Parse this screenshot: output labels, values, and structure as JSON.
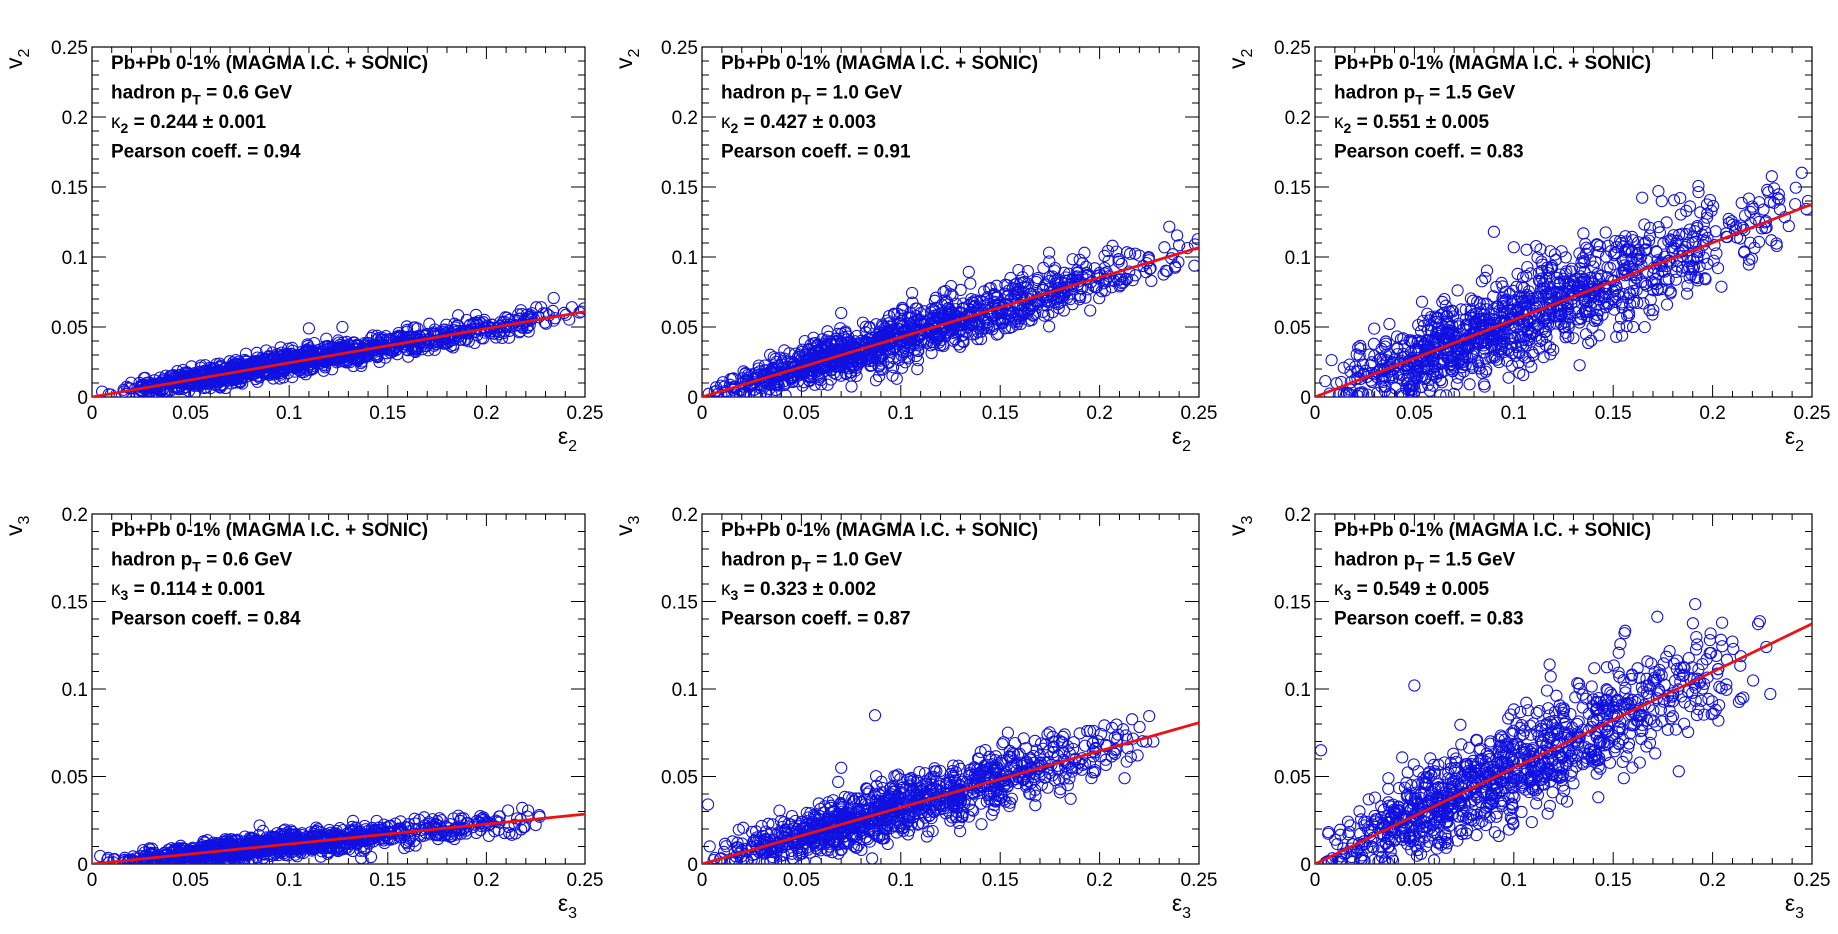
{
  "chart_data": [
    {
      "type": "scatter",
      "ylabel_base": "v",
      "ylabel_sub": "2",
      "xlabel_base": "ε",
      "xlabel_sub": "2",
      "xlim": [
        0,
        0.25
      ],
      "ylim": [
        0,
        0.25
      ],
      "xticks": [
        "0",
        "0.05",
        "0.1",
        "0.15",
        "0.2",
        "0.25"
      ],
      "yticks": [
        "0",
        "0.05",
        "0.1",
        "0.15",
        "0.2",
        "0.25"
      ],
      "legend": {
        "title": "Pb+Pb 0-1% (MAGMA I.C. + SONIC)",
        "pt_prefix": "hadron p",
        "pt_sub": "T",
        "pt_value": " = 0.6 GeV",
        "kappa_sym": "κ",
        "kappa_sub": "2",
        "kappa_value": " = 0.244",
        "kappa_err": "± 0.001",
        "pearson": "Pearson coeff. = 0.94"
      },
      "fit": {
        "slope": 0.244,
        "x_range": [
          0,
          0.25
        ]
      },
      "scatter_model": {
        "n_points": 1200,
        "x_min": 0.003,
        "x_mode": 0.07,
        "x_max": 0.25,
        "noise_sd": 0.0045,
        "seed": 11
      },
      "outliers": [
        [
          0.248,
          0.061
        ],
        [
          0.222,
          0.057
        ],
        [
          0.127,
          0.05
        ],
        [
          0.11,
          0.049
        ],
        [
          0.19,
          0.055
        ]
      ],
      "marker_color": "#1010e0",
      "fit_color": "#ee1111"
    },
    {
      "type": "scatter",
      "ylabel_base": "v",
      "ylabel_sub": "2",
      "xlabel_base": "ε",
      "xlabel_sub": "2",
      "xlim": [
        0,
        0.25
      ],
      "ylim": [
        0,
        0.25
      ],
      "xticks": [
        "0",
        "0.05",
        "0.1",
        "0.15",
        "0.2",
        "0.25"
      ],
      "yticks": [
        "0",
        "0.05",
        "0.1",
        "0.15",
        "0.2",
        "0.25"
      ],
      "legend": {
        "title": "Pb+Pb 0-1% (MAGMA I.C. + SONIC)",
        "pt_prefix": "hadron p",
        "pt_sub": "T",
        "pt_value": " = 1.0 GeV",
        "kappa_sym": "κ",
        "kappa_sub": "2",
        "kappa_value": " = 0.427",
        "kappa_err": "± 0.003",
        "pearson": "Pearson coeff. = 0.91"
      },
      "fit": {
        "slope": 0.427,
        "x_range": [
          0,
          0.25
        ]
      },
      "scatter_model": {
        "n_points": 1200,
        "x_min": 0.003,
        "x_mode": 0.07,
        "x_max": 0.25,
        "noise_sd": 0.009,
        "seed": 23
      },
      "outliers": [
        [
          0.248,
          0.109
        ],
        [
          0.22,
          0.101
        ],
        [
          0.098,
          0.013
        ],
        [
          0.07,
          0.06
        ],
        [
          0.19,
          0.098
        ]
      ],
      "marker_color": "#1010e0",
      "fit_color": "#ee1111"
    },
    {
      "type": "scatter",
      "ylabel_base": "v",
      "ylabel_sub": "2",
      "xlabel_base": "ε",
      "xlabel_sub": "2",
      "xlim": [
        0,
        0.25
      ],
      "ylim": [
        0,
        0.25
      ],
      "xticks": [
        "0",
        "0.05",
        "0.1",
        "0.15",
        "0.2",
        "0.25"
      ],
      "yticks": [
        "0",
        "0.05",
        "0.1",
        "0.15",
        "0.2",
        "0.25"
      ],
      "legend": {
        "title": "Pb+Pb 0-1% (MAGMA I.C. + SONIC)",
        "pt_prefix": "hadron p",
        "pt_sub": "T",
        "pt_value": " = 1.5 GeV",
        "kappa_sym": "κ",
        "kappa_sub": "2",
        "kappa_value": " = 0.551",
        "kappa_err": "± 0.005",
        "pearson": "Pearson coeff. = 0.83"
      },
      "fit": {
        "slope": 0.551,
        "x_range": [
          0,
          0.25
        ]
      },
      "scatter_model": {
        "n_points": 1200,
        "x_min": 0.003,
        "x_mode": 0.07,
        "x_max": 0.25,
        "noise_sd": 0.017,
        "seed": 37
      },
      "outliers": [
        [
          0.248,
          0.14
        ],
        [
          0.22,
          0.136
        ],
        [
          0.1,
          0.107
        ],
        [
          0.09,
          0.118
        ],
        [
          0.16,
          0.05
        ]
      ],
      "marker_color": "#1010e0",
      "fit_color": "#ee1111"
    },
    {
      "type": "scatter",
      "ylabel_base": "v",
      "ylabel_sub": "3",
      "xlabel_base": "ε",
      "xlabel_sub": "3",
      "xlim": [
        0,
        0.25
      ],
      "ylim": [
        0,
        0.2
      ],
      "xticks": [
        "0",
        "0.05",
        "0.1",
        "0.15",
        "0.2",
        "0.25"
      ],
      "yticks": [
        "0",
        "0.05",
        "0.1",
        "0.15",
        "0.2"
      ],
      "legend": {
        "title": "Pb+Pb 0-1% (MAGMA I.C. + SONIC)",
        "pt_prefix": "hadron p",
        "pt_sub": "T",
        "pt_value": " = 0.6 GeV",
        "kappa_sym": "κ",
        "kappa_sub": "3",
        "kappa_value": " = 0.114",
        "kappa_err": "± 0.001",
        "pearson": "Pearson coeff. = 0.84"
      },
      "fit": {
        "slope": 0.114,
        "x_range": [
          0,
          0.25
        ]
      },
      "scatter_model": {
        "n_points": 1100,
        "x_min": 0.003,
        "x_mode": 0.07,
        "x_max": 0.23,
        "noise_sd": 0.0035,
        "seed": 53
      },
      "outliers": [
        [
          0.227,
          0.027
        ],
        [
          0.198,
          0.025
        ],
        [
          0.085,
          0.022
        ]
      ],
      "marker_color": "#1010e0",
      "fit_color": "#ee1111"
    },
    {
      "type": "scatter",
      "ylabel_base": "v",
      "ylabel_sub": "3",
      "xlabel_base": "ε",
      "xlabel_sub": "3",
      "xlim": [
        0,
        0.25
      ],
      "ylim": [
        0,
        0.2
      ],
      "xticks": [
        "0",
        "0.05",
        "0.1",
        "0.15",
        "0.2",
        "0.25"
      ],
      "yticks": [
        "0",
        "0.05",
        "0.1",
        "0.15",
        "0.2"
      ],
      "legend": {
        "title": "Pb+Pb 0-1% (MAGMA I.C. + SONIC)",
        "pt_prefix": "hadron p",
        "pt_sub": "T",
        "pt_value": " = 1.0 GeV",
        "kappa_sym": "κ",
        "kappa_sub": "3",
        "kappa_value": " = 0.323",
        "kappa_err": "± 0.002",
        "pearson": "Pearson coeff. = 0.87"
      },
      "fit": {
        "slope": 0.323,
        "x_range": [
          0,
          0.25
        ]
      },
      "scatter_model": {
        "n_points": 1100,
        "x_min": 0.003,
        "x_mode": 0.07,
        "x_max": 0.23,
        "noise_sd": 0.0085,
        "seed": 71
      },
      "outliers": [
        [
          0.087,
          0.085
        ],
        [
          0.227,
          0.07
        ],
        [
          0.197,
          0.076
        ],
        [
          0.003,
          0.034
        ],
        [
          0.07,
          0.055
        ]
      ],
      "marker_color": "#1010e0",
      "fit_color": "#ee1111"
    },
    {
      "type": "scatter",
      "ylabel_base": "v",
      "ylabel_sub": "3",
      "xlabel_base": "ε",
      "xlabel_sub": "3",
      "xlim": [
        0,
        0.25
      ],
      "ylim": [
        0,
        0.2
      ],
      "xticks": [
        "0",
        "0.05",
        "0.1",
        "0.15",
        "0.2",
        "0.25"
      ],
      "yticks": [
        "0",
        "0.05",
        "0.1",
        "0.15",
        "0.2"
      ],
      "legend": {
        "title": "Pb+Pb 0-1% (MAGMA I.C. + SONIC)",
        "pt_prefix": "hadron p",
        "pt_sub": "T",
        "pt_value": " = 1.5 GeV",
        "kappa_sym": "κ",
        "kappa_sub": "3",
        "kappa_value": " = 0.549",
        "kappa_err": "± 0.005",
        "pearson": "Pearson coeff. = 0.83"
      },
      "fit": {
        "slope": 0.549,
        "x_range": [
          0,
          0.25
        ]
      },
      "scatter_model": {
        "n_points": 1100,
        "x_min": 0.003,
        "x_mode": 0.07,
        "x_max": 0.23,
        "noise_sd": 0.0155,
        "seed": 89
      },
      "outliers": [
        [
          0.227,
          0.124
        ],
        [
          0.118,
          0.114
        ],
        [
          0.05,
          0.102
        ],
        [
          0.003,
          0.065
        ],
        [
          0.197,
          0.117
        ],
        [
          0.183,
          0.053
        ]
      ],
      "marker_color": "#1010e0",
      "fit_color": "#ee1111"
    }
  ]
}
